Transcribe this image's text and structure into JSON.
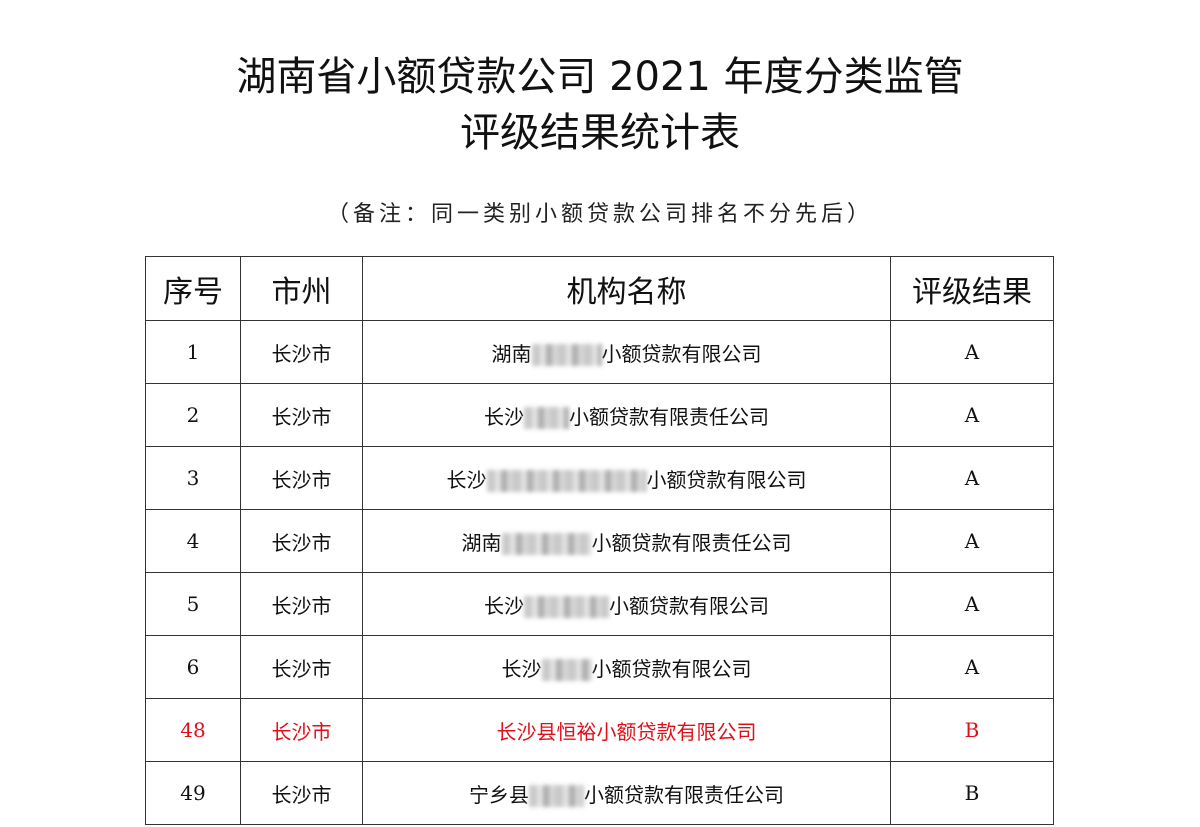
{
  "title_line1": "湖南省小额贷款公司 2021 年度分类监管",
  "title_line2": "评级结果统计表",
  "note": "（备注：同一类别小额贷款公司排名不分先后）",
  "headers": [
    "序号",
    "市州",
    "机构名称",
    "评级结果"
  ],
  "highlight_color": "#e0101a",
  "rows": [
    {
      "no": "1",
      "city": "长沙市",
      "prefix": "湖南",
      "suffix": "小额贷款有限公司",
      "rating": "A"
    },
    {
      "no": "2",
      "city": "长沙市",
      "prefix": "长沙",
      "suffix": "小额贷款有限责任公司",
      "rating": "A"
    },
    {
      "no": "3",
      "city": "长沙市",
      "prefix": "长沙",
      "suffix": "小额贷款有限公司",
      "rating": "A"
    },
    {
      "no": "4",
      "city": "长沙市",
      "prefix": "湖南",
      "suffix": "小额贷款有限责任公司",
      "rating": "A"
    },
    {
      "no": "5",
      "city": "长沙市",
      "prefix": "长沙",
      "suffix": "小额贷款有限公司",
      "rating": "A"
    },
    {
      "no": "6",
      "city": "长沙市",
      "prefix": "长沙",
      "suffix": "小额贷款有限公司",
      "rating": "A"
    },
    {
      "no": "48",
      "city": "长沙市",
      "prefix": "长沙县恒裕",
      "suffix": "小额贷款有限公司",
      "rating": "B",
      "highlighted": true
    },
    {
      "no": "49",
      "city": "长沙市",
      "prefix": "宁乡县",
      "suffix": "小额贷款有限责任公司",
      "rating": "B"
    }
  ]
}
